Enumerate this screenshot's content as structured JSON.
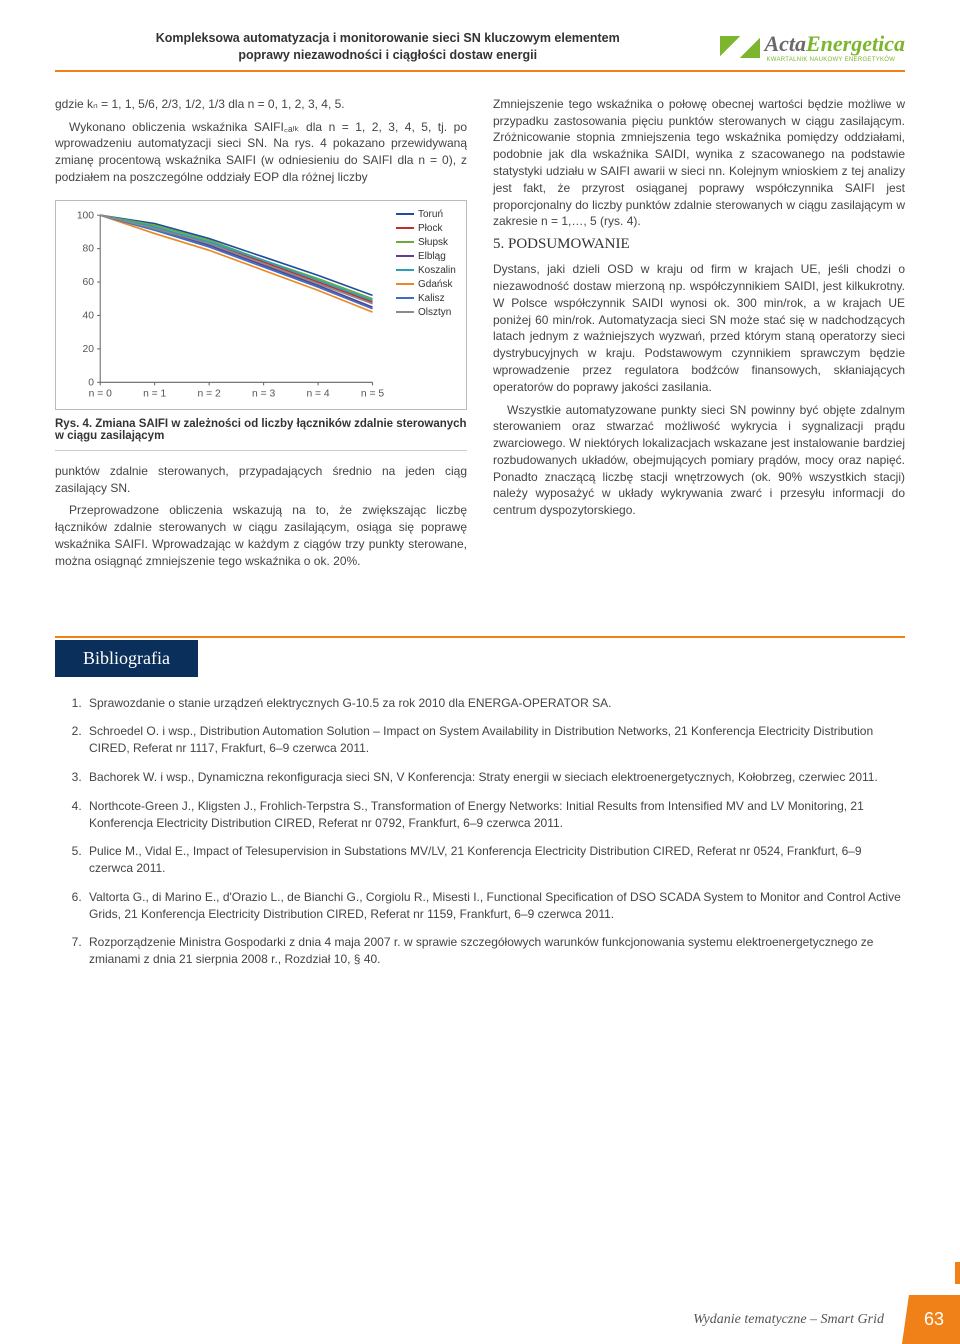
{
  "header": {
    "title_line1": "Kompleksowa automatyzacja i monitorowanie sieci SN kluczowym elementem",
    "title_line2": "poprawy niezawodności i ciągłości dostaw energii",
    "logo_acta": "Acta",
    "logo_energetica": "Energetica",
    "logo_sub": "KWARTALNIK NAUKOWY ENERGETYKÓW"
  },
  "left_col": {
    "p1": "gdzie kₙ = 1, 1, 5/6, 2/3, 1/2, 1/3 dla n = 0, 1, 2, 3, 4, 5.",
    "p2": "Wykonano obliczenia wskaźnika SAIFI꜀ₐₗₖ dla n = 1, 2, 3, 4, 5, tj. po wprowadzeniu automatyzacji sieci SN. Na rys. 4 pokazano przewidywaną zmianę procentową wskaźnika SAIFI (w odniesieniu do SAIFI dla n = 0), z podziałem na poszczególne oddziały EOP dla różnej liczby",
    "fig_caption": "Rys. 4. Zmiana SAIFI w zależności od liczby łączników zdalnie sterowanych w ciągu zasilającym",
    "p3": "punktów zdalnie sterowanych, przypadających średnio na jeden ciąg zasilający SN.",
    "p4": "Przeprowadzone obliczenia wskazują na to, że zwiększając liczbę łączników zdalnie sterowanych w ciągu zasilającym, osiąga się poprawę wskaźnika SAIFI. Wprowadzając w każdym z ciągów trzy punkty sterowane, można osiągnąć zmniejszenie tego wskaźnika o ok. 20%."
  },
  "right_col": {
    "p1": "Zmniejszenie tego wskaźnika o połowę obecnej wartości będzie możliwe w przypadku zastosowania pięciu punktów sterowanych w ciągu zasilającym. Zróżnicowanie stopnia zmniejszenia tego wskaźnika pomiędzy oddziałami, podobnie jak dla wskaźnika SAIDI, wynika z szacowanego na podstawie statystyki udziału w SAIFI awarii w sieci nn. Kolejnym wnioskiem z tej analizy jest fakt, że przyrost osiąganej poprawy współczynnika SAIFI jest proporcjonalny do liczby punktów zdalnie sterowanych w ciągu zasilającym w zakresie n = 1,…, 5 (rys. 4).",
    "section5": "5. PODSUMOWANIE",
    "p2": "Dystans, jaki dzieli OSD w kraju od firm w krajach UE, jeśli chodzi o niezawodność dostaw mierzoną np. współczynnikiem SAIDI, jest kilkukrotny. W Polsce współczynnik SAIDI wynosi ok. 300 min/rok, a w krajach UE poniżej 60 min/rok. Automatyzacja sieci SN może stać się w nadchodzących latach jednym z ważniejszych wyzwań, przed którym staną operatorzy sieci dystrybucyjnych w kraju. Podstawowym czynnikiem sprawczym będzie wprowadzenie przez regulatora bodźców finansowych, skłaniających operatorów do poprawy jakości zasilania.",
    "p3": "Wszystkie automatyzowane punkty sieci SN powinny być objęte zdalnym sterowaniem oraz stwarzać możliwość wykrycia i sygnalizacji prądu zwarciowego. W niektórych lokalizacjach wskazane jest instalowanie bardziej rozbudowanych układów, obejmujących pomiary prądów, mocy oraz napięć. Ponadto znaczącą liczbę stacji wnętrzowych (ok. 90% wszystkich stacji) należy wyposażyć w układy wykrywania zwarć i przesyłu informacji do centrum dyspozytorskiego."
  },
  "chart": {
    "type": "line",
    "ylim": [
      0,
      100
    ],
    "ytick_step": 20,
    "x_categories": [
      "n = 0",
      "n = 1",
      "n = 2",
      "n = 3",
      "n = 4",
      "n = 5"
    ],
    "series": [
      {
        "name": "Toruń",
        "color": "#1f4e9c",
        "values": [
          100,
          95,
          86,
          75,
          64,
          52
        ]
      },
      {
        "name": "Płock",
        "color": "#c0302b",
        "values": [
          100,
          93,
          83,
          72,
          60,
          48
        ]
      },
      {
        "name": "Słupsk",
        "color": "#6bab3d",
        "values": [
          100,
          94,
          85,
          73,
          62,
          50
        ]
      },
      {
        "name": "Elbląg",
        "color": "#5b3f91",
        "values": [
          100,
          92,
          82,
          70,
          58,
          45
        ]
      },
      {
        "name": "Koszalin",
        "color": "#2aa0b7",
        "values": [
          100,
          93,
          84,
          73,
          61,
          49
        ]
      },
      {
        "name": "Gdańsk",
        "color": "#e98824",
        "values": [
          100,
          89,
          79,
          67,
          55,
          42
        ]
      },
      {
        "name": "Kalisz",
        "color": "#3b6fc4",
        "values": [
          100,
          91,
          81,
          69,
          57,
          44
        ]
      },
      {
        "name": "Olsztyn",
        "color": "#8a8a8a",
        "values": [
          100,
          92,
          83,
          71,
          59,
          47
        ]
      }
    ],
    "axis_color": "#666",
    "tick_fontsize": 10,
    "background_color": "#ffffff"
  },
  "bibliografia": {
    "heading": "Bibliografia",
    "items": [
      "Sprawozdanie o stanie urządzeń elektrycznych G-10.5 za rok 2010 dla ENERGA-OPERATOR SA.",
      "Schroedel O. i wsp., Distribution Automation Solution – Impact on System Availability in Distribution Networks, 21 Konferencja Electricity Distribution CIRED, Referat nr 1117, Frakfurt, 6–9 czerwca 2011.",
      "Bachorek W. i wsp., Dynamiczna rekonfiguracja sieci SN, V Konferencja: Straty energii w sieciach elektroenergetycznych, Kołobrzeg, czerwiec 2011.",
      "Northcote-Green J., Kligsten J., Frohlich-Terpstra S., Transformation of Energy Networks: Initial Results from Intensified MV and LV Monitoring, 21 Konferencja Electricity Distribution CIRED, Referat nr 0792, Frankfurt, 6–9 czerwca 2011.",
      "Pulice M., Vidal E., Impact of Telesupervision in Substations MV/LV, 21 Konferencja Electricity Distribution CIRED, Referat nr 0524, Frankfurt, 6–9 czerwca 2011.",
      "Valtorta G., di Marino E., d'Orazio L., de Bianchi G., Corgiolu R., Misesti I., Functional Specification of DSO SCADA System to Monitor and Control Active Grids, 21 Konferencja Electricity Distribution CIRED, Referat nr 1159, Frankfurt, 6–9 czerwca 2011.",
      "Rozporządzenie Ministra Gospodarki z dnia 4 maja 2007 r. w sprawie szczegółowych warunków funkcjonowania systemu elektroenergetycznego ze zmianami z dnia 21 sierpnia 2008 r., Rozdział 10, § 40."
    ]
  },
  "footer": {
    "text": "Wydanie tematyczne – Smart Grid",
    "page_number": "63"
  }
}
